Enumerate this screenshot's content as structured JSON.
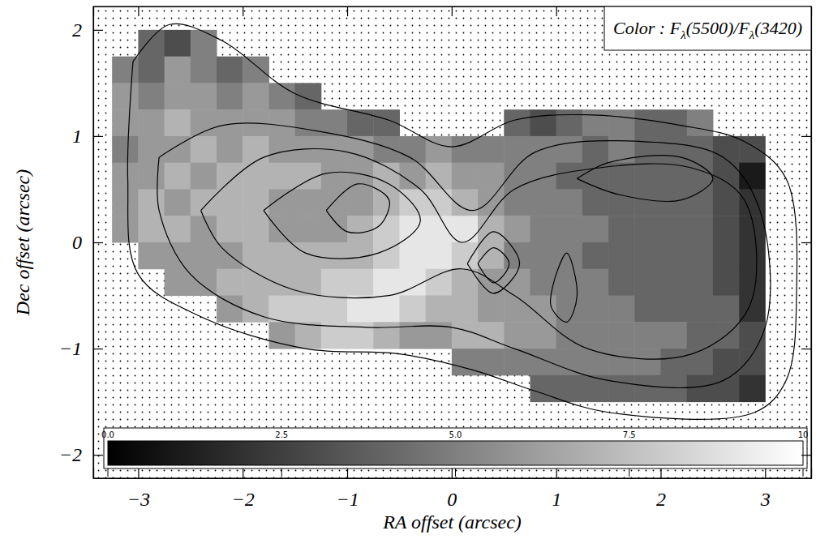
{
  "chart_data": {
    "type": "heatmap",
    "title": "Color : Fλ(5500)/Fλ(3420)",
    "x_label": "RA offset (arcsec)",
    "y_label": "Dec offset (arcsec)",
    "xlim": [
      -3.43,
      3.44
    ],
    "ylim": [
      -2.22,
      2.22
    ],
    "xticks": [
      {
        "value": -3,
        "label": "−3"
      },
      {
        "value": -2,
        "label": "−2"
      },
      {
        "value": -1,
        "label": "−1"
      },
      0,
      1,
      2,
      3
    ],
    "yticks": [
      {
        "value": -2,
        "label": "−2"
      },
      {
        "value": -1,
        "label": "−1"
      },
      0,
      1,
      2
    ],
    "x": [
      -3.125,
      -2.875,
      -2.625,
      -2.375,
      -2.125,
      -1.875,
      -1.625,
      -1.375,
      -1.125,
      -0.875,
      -0.625,
      -0.375,
      -0.125,
      0.125,
      0.375,
      0.625,
      0.875,
      1.125,
      1.375,
      1.625,
      1.875,
      2.125,
      2.375,
      2.625,
      2.875
    ],
    "y": [
      1.875,
      1.625,
      1.375,
      1.125,
      0.875,
      0.625,
      0.375,
      0.125,
      -0.125,
      -0.375,
      -0.625,
      -0.875,
      -1.125,
      -1.375
    ],
    "cells": [
      [
        null,
        4,
        3,
        5,
        null,
        null,
        null,
        null,
        null,
        null,
        null,
        null,
        null,
        null,
        null,
        null,
        null,
        null,
        null,
        null,
        null,
        null,
        null,
        null,
        null
      ],
      [
        5,
        4,
        6,
        5,
        4,
        5,
        null,
        null,
        null,
        null,
        null,
        null,
        null,
        null,
        null,
        null,
        null,
        null,
        null,
        null,
        null,
        null,
        null,
        null,
        null
      ],
      [
        6,
        5,
        6,
        6,
        5,
        6,
        5,
        4,
        null,
        null,
        null,
        null,
        null,
        null,
        null,
        null,
        null,
        null,
        null,
        null,
        null,
        null,
        null,
        null,
        null
      ],
      [
        6,
        6,
        7,
        6,
        6,
        6,
        6,
        5,
        5,
        4,
        4,
        null,
        null,
        null,
        null,
        4,
        3,
        4,
        5,
        5,
        4,
        4,
        5,
        null,
        null
      ],
      [
        5,
        6,
        6,
        7,
        6,
        7,
        6,
        6,
        6,
        6,
        5,
        5,
        6,
        5,
        5,
        5,
        5,
        5,
        4,
        5,
        4,
        4,
        4,
        3,
        3
      ],
      [
        6,
        6,
        7,
        6,
        7,
        7,
        7,
        7,
        6,
        6,
        7,
        6,
        7,
        6,
        6,
        5,
        5,
        4,
        4,
        4,
        4,
        4,
        4,
        3,
        1
      ],
      [
        6,
        7,
        6,
        7,
        7,
        7,
        6,
        6,
        6,
        6,
        7,
        8,
        8,
        7,
        6,
        5,
        5,
        5,
        4,
        4,
        4,
        4,
        4,
        3,
        2
      ],
      [
        6,
        7,
        7,
        6,
        7,
        7,
        6,
        6,
        6,
        7,
        8,
        9,
        9,
        9,
        7,
        6,
        5,
        5,
        5,
        4,
        4,
        4,
        4,
        3,
        2
      ],
      [
        null,
        6,
        6,
        6,
        6,
        7,
        7,
        7,
        7,
        7,
        8,
        9,
        9,
        8,
        7,
        5,
        5,
        5,
        4,
        4,
        4,
        4,
        4,
        3,
        2
      ],
      [
        null,
        null,
        6,
        6,
        7,
        7,
        7,
        7,
        8,
        8,
        9,
        9,
        8,
        7,
        6,
        6,
        5,
        5,
        5,
        4,
        4,
        4,
        4,
        3,
        2
      ],
      [
        null,
        null,
        null,
        null,
        6,
        7,
        8,
        8,
        8,
        9,
        9,
        8,
        7,
        7,
        6,
        6,
        6,
        5,
        5,
        5,
        4,
        4,
        4,
        4,
        2
      ],
      [
        null,
        null,
        null,
        null,
        null,
        null,
        6,
        7,
        8,
        8,
        7,
        6,
        6,
        7,
        7,
        6,
        6,
        5,
        5,
        5,
        5,
        5,
        4,
        4,
        3
      ],
      [
        null,
        null,
        null,
        null,
        null,
        null,
        null,
        null,
        null,
        null,
        null,
        null,
        null,
        5,
        5,
        5,
        5,
        5,
        5,
        5,
        5,
        4,
        4,
        3,
        3
      ],
      [
        null,
        null,
        null,
        null,
        null,
        null,
        null,
        null,
        null,
        null,
        null,
        null,
        null,
        null,
        null,
        null,
        4,
        4,
        4,
        4,
        4,
        4,
        3,
        3,
        2
      ]
    ],
    "contours": [
      {
        "x": [
          -3.05,
          -2.7,
          -2.2,
          -1.5,
          -0.6,
          0,
          0.6,
          1.3,
          2.2,
          2.8,
          3.2,
          3.3,
          3.2,
          2.9,
          1.5,
          0.8,
          0.2,
          -0.5,
          -1.4,
          -2.4,
          -3.0,
          -3.1,
          -3.05
        ],
        "y": [
          1.7,
          2.05,
          1.9,
          1.4,
          1.15,
          0.9,
          1.15,
          1.2,
          1.1,
          0.95,
          0.6,
          -0.5,
          -1.3,
          -1.6,
          -1.6,
          -1.4,
          -1.2,
          -1.05,
          -1.0,
          -0.7,
          -0.3,
          0.6,
          1.7
        ]
      },
      {
        "x": [
          -2.8,
          -2.2,
          -1.3,
          -0.4,
          0.2,
          0.8,
          1.8,
          2.6,
          2.95,
          3.0,
          2.6,
          1.5,
          0.6,
          0,
          -0.8,
          -1.8,
          -2.5,
          -2.8,
          -2.8
        ],
        "y": [
          0.8,
          1.1,
          1.05,
          0.8,
          0.3,
          0.85,
          0.95,
          0.8,
          0.3,
          -0.8,
          -1.3,
          -1.3,
          -1.0,
          -0.8,
          -0.8,
          -0.7,
          -0.3,
          0.3,
          0.8
        ]
      },
      {
        "x": [
          -2.4,
          -1.8,
          -1.0,
          -0.3,
          0.1,
          0.6,
          1.4,
          2.3,
          2.8,
          2.85,
          2.3,
          1.3,
          0.6,
          0.1,
          -0.6,
          -1.5,
          -2.2,
          -2.4
        ],
        "y": [
          0.3,
          0.8,
          0.85,
          0.5,
          0.0,
          0.5,
          0.7,
          0.7,
          0.4,
          -0.6,
          -1.05,
          -1.0,
          -0.5,
          -0.25,
          -0.5,
          -0.45,
          -0.05,
          0.3
        ]
      },
      {
        "x": [
          -1.8,
          -1.2,
          -0.6,
          -0.3,
          -0.7,
          -1.4,
          -1.8
        ],
        "y": [
          0.3,
          0.65,
          0.55,
          0.2,
          -0.1,
          -0.1,
          0.3
        ]
      },
      {
        "x": [
          -1.2,
          -0.9,
          -0.6,
          -0.7,
          -1.0,
          -1.2
        ],
        "y": [
          0.3,
          0.55,
          0.4,
          0.15,
          0.1,
          0.3
        ]
      },
      {
        "x": [
          0.25,
          0.4,
          0.55,
          0.4,
          0.25
        ],
        "y": [
          -0.2,
          -0.05,
          -0.2,
          -0.38,
          -0.2
        ]
      },
      {
        "x": [
          0.15,
          0.4,
          0.65,
          0.4,
          0.15
        ],
        "y": [
          -0.2,
          0.1,
          -0.2,
          -0.48,
          -0.2
        ]
      },
      {
        "x": [
          1.2,
          1.5,
          2.2,
          2.5,
          2.2,
          1.6,
          1.2
        ],
        "y": [
          0.6,
          0.75,
          0.8,
          0.6,
          0.4,
          0.45,
          0.6
        ]
      },
      {
        "x": [
          1.0,
          1.1,
          1.2,
          1.1,
          0.95,
          1.0
        ],
        "y": [
          -0.3,
          -0.1,
          -0.5,
          -0.75,
          -0.6,
          -0.3
        ]
      }
    ],
    "colorbar": {
      "range": [
        0,
        10
      ],
      "ticks": [
        {
          "value": 0,
          "label": "0.0"
        },
        {
          "value": 2.5,
          "label": "2.5"
        },
        {
          "value": 5,
          "label": "5.0"
        },
        {
          "value": 7.5,
          "label": "7.5"
        },
        10
      ]
    }
  }
}
